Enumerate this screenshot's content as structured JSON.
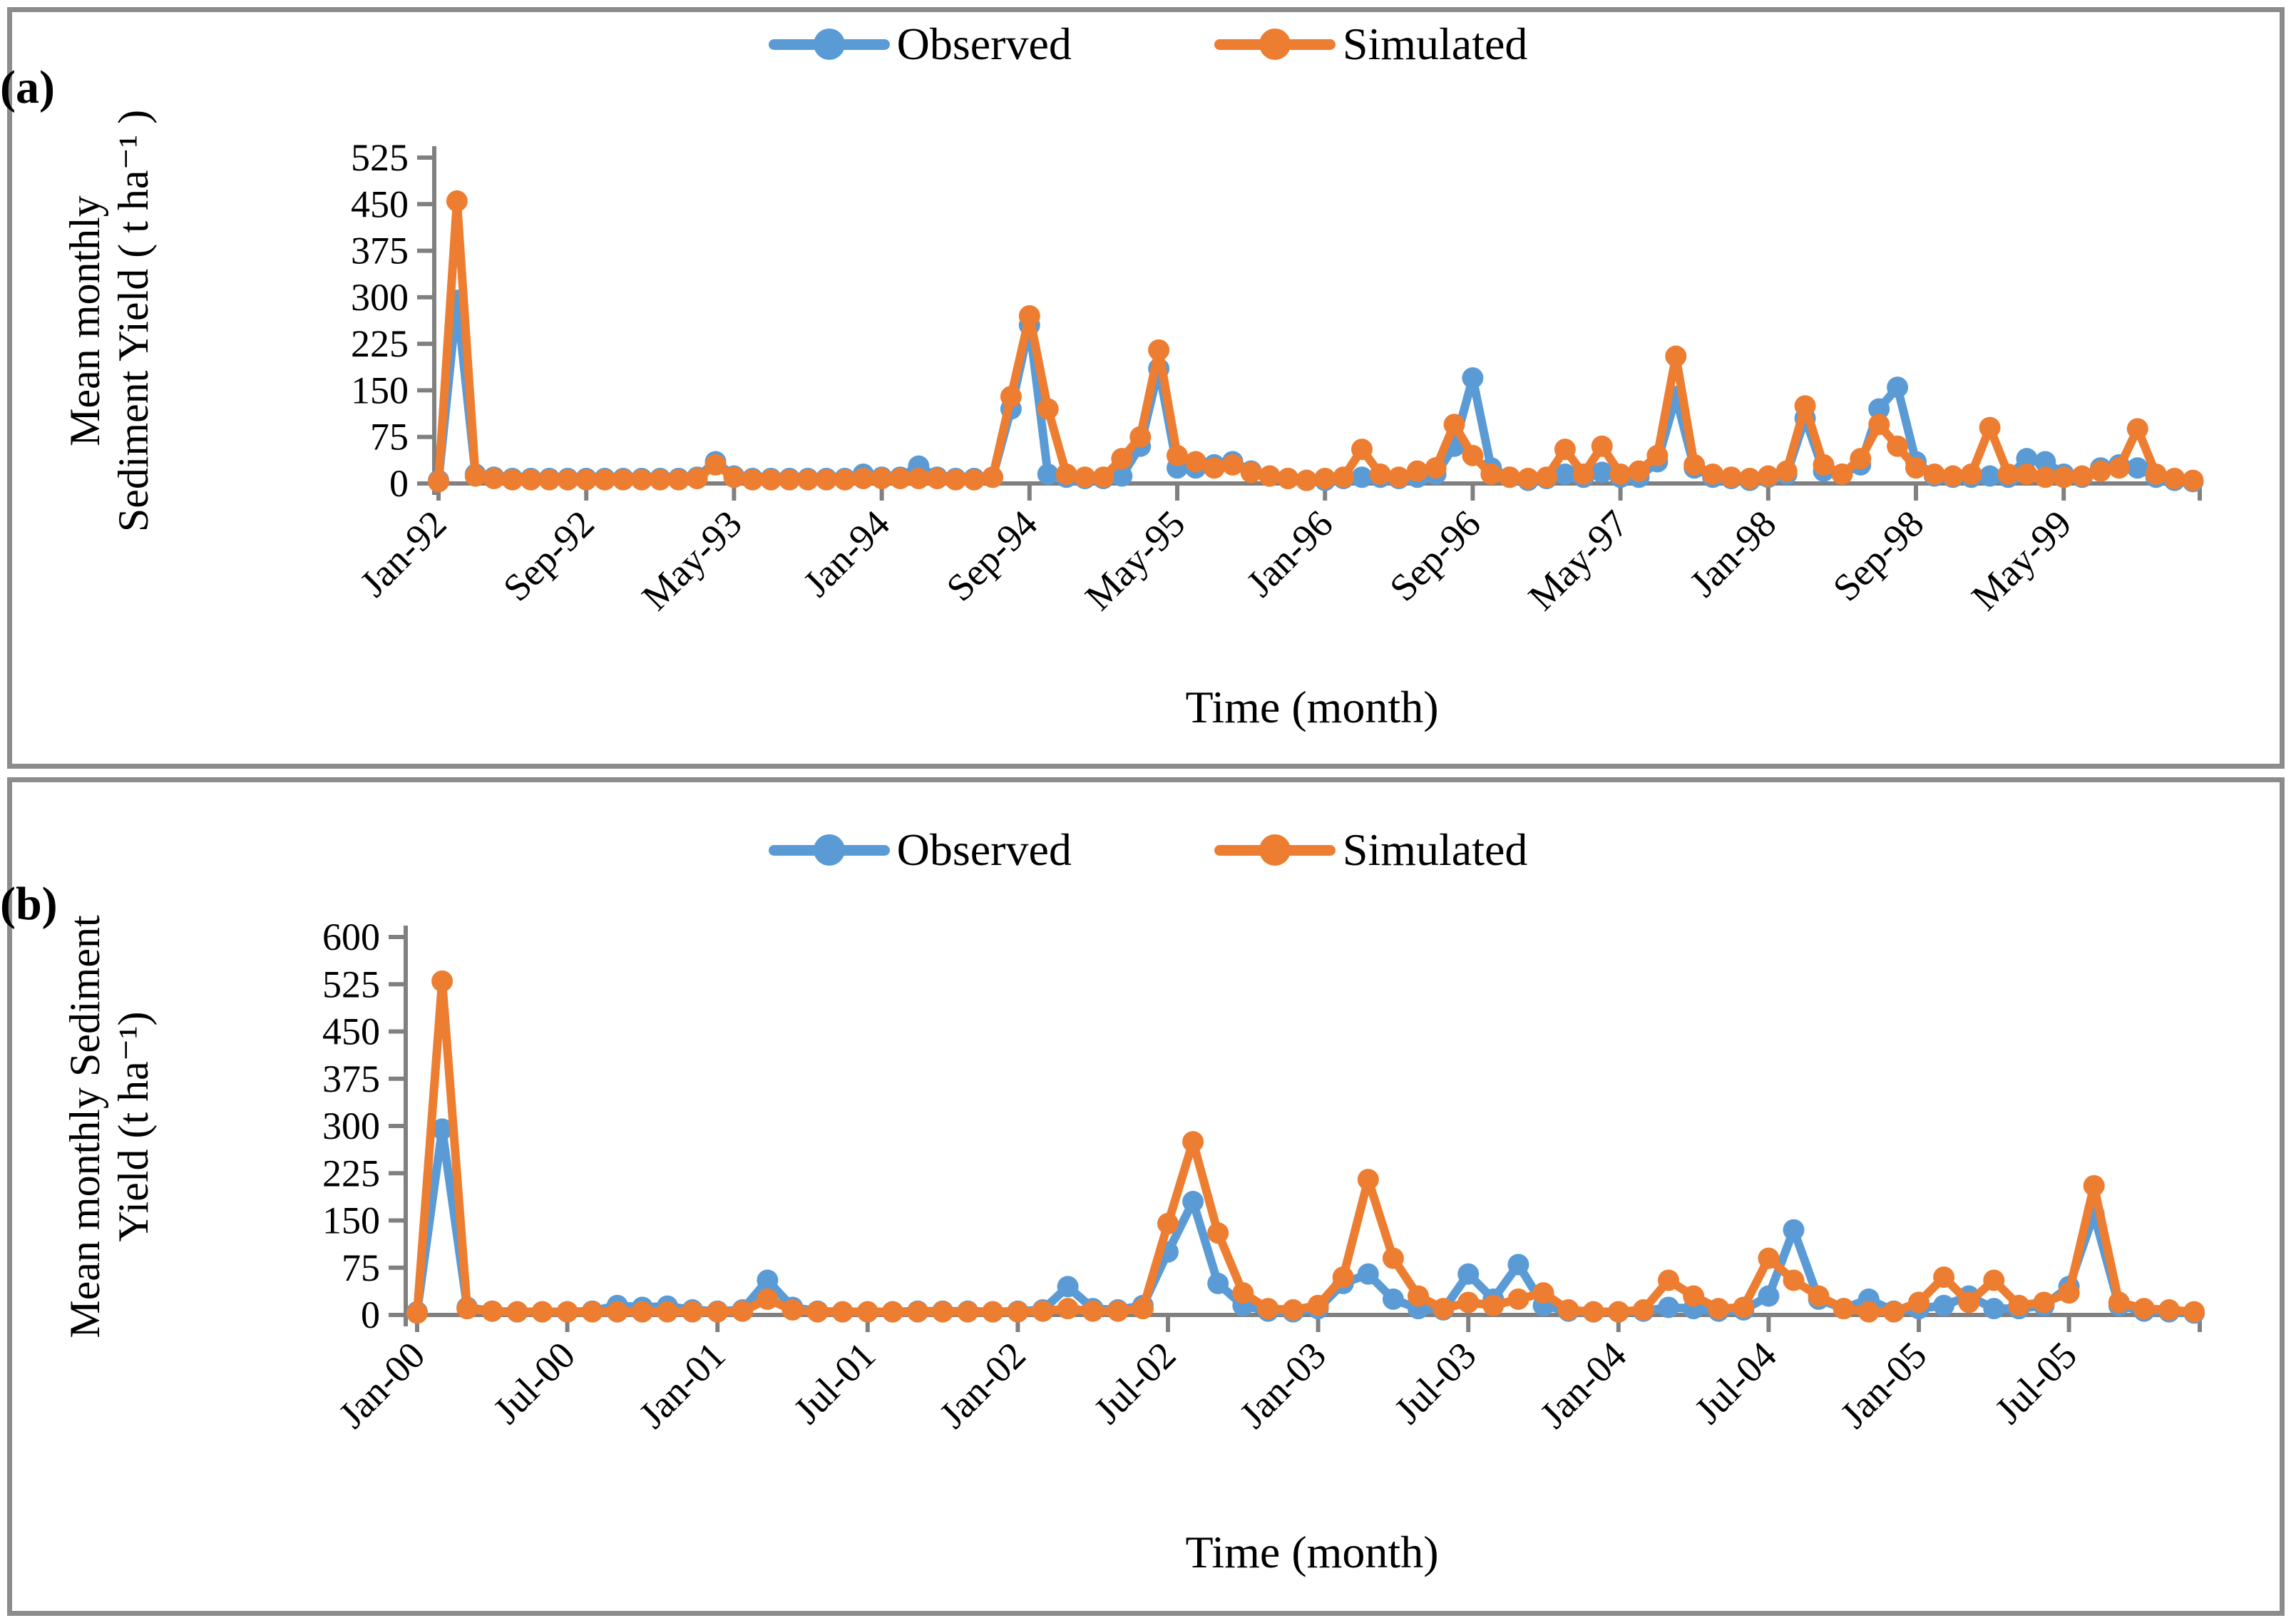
{
  "legend": {
    "observed_label": "Observed",
    "simulated_label": "Simulated"
  },
  "colors": {
    "observed": "#5B9BD5",
    "simulated": "#ED7D31",
    "axis": "#808080",
    "panel_border": "#8C8C8C"
  },
  "panels": [
    {
      "tag": "(a)",
      "y_axis_title_lines": [
        "Mean monthly",
        "Sediment Yield ( t ha⁻¹ )"
      ],
      "x_axis_title": "Time (month)"
    },
    {
      "tag": "(b)",
      "y_axis_title_lines": [
        "Mean monthly Sediment",
        "Yield (t ha⁻¹)"
      ],
      "x_axis_title": "Time (month)"
    }
  ],
  "chart_data": [
    {
      "type": "line",
      "panel": "(a)",
      "xlabel": "Time (month)",
      "ylabel": "Mean monthly Sediment Yield ( t ha-1 )",
      "ylim": [
        0,
        525
      ],
      "ytick_step": 75,
      "y_tick_labels": [
        "0",
        "75",
        "150",
        "225",
        "300",
        "375",
        "450",
        "525"
      ],
      "x_unit": "monthly, Jan-1992 to Dec-1999",
      "x_tick_every": 8,
      "x_tick_labels": [
        "Jan-92",
        "Sep-92",
        "May-93",
        "Jan-94",
        "Sep-94",
        "May-95",
        "Jan-96",
        "Sep-96",
        "May-97",
        "Jan-98",
        "Sep-98",
        "May-99"
      ],
      "legend_position": "top-center",
      "grid": false,
      "series": [
        {
          "name": "Observed",
          "color": "#5B9BD5",
          "values": [
            5,
            295,
            15,
            10,
            8,
            8,
            8,
            8,
            8,
            8,
            8,
            8,
            8,
            8,
            10,
            35,
            12,
            8,
            8,
            8,
            8,
            8,
            8,
            15,
            10,
            10,
            28,
            10,
            8,
            8,
            10,
            120,
            255,
            15,
            10,
            8,
            8,
            12,
            60,
            185,
            25,
            25,
            30,
            35,
            20,
            12,
            8,
            5,
            5,
            8,
            10,
            10,
            8,
            10,
            15,
            60,
            170,
            25,
            10,
            5,
            8,
            15,
            10,
            18,
            10,
            10,
            35,
            140,
            25,
            10,
            8,
            5,
            10,
            15,
            105,
            20,
            15,
            30,
            120,
            155,
            35,
            12,
            10,
            10,
            12,
            10,
            40,
            35,
            15,
            10,
            25,
            30,
            25,
            10,
            5,
            3
          ]
        },
        {
          "name": "Simulated",
          "color": "#ED7D31",
          "values": [
            3,
            455,
            12,
            8,
            6,
            6,
            6,
            6,
            6,
            6,
            6,
            6,
            6,
            6,
            8,
            30,
            10,
            6,
            6,
            6,
            6,
            6,
            6,
            8,
            8,
            8,
            8,
            8,
            6,
            6,
            10,
            140,
            270,
            120,
            15,
            10,
            10,
            40,
            75,
            215,
            45,
            35,
            25,
            30,
            18,
            12,
            8,
            5,
            8,
            10,
            55,
            15,
            10,
            20,
            25,
            95,
            45,
            15,
            10,
            8,
            10,
            55,
            15,
            60,
            15,
            20,
            45,
            205,
            30,
            15,
            10,
            8,
            12,
            20,
            125,
            30,
            15,
            40,
            95,
            60,
            25,
            15,
            12,
            15,
            90,
            15,
            15,
            10,
            10,
            12,
            20,
            25,
            88,
            15,
            8,
            5
          ]
        }
      ]
    },
    {
      "type": "line",
      "panel": "(b)",
      "xlabel": "Time (month)",
      "ylabel": "Mean monthly Sediment Yield (t ha-1)",
      "ylim": [
        0,
        600
      ],
      "ytick_step": 75,
      "y_tick_labels": [
        "0",
        "75",
        "150",
        "225",
        "300",
        "375",
        "450",
        "525",
        "600"
      ],
      "x_unit": "monthly, Jan-2000 to Dec-2005",
      "x_tick_every": 6,
      "x_tick_labels": [
        "Jan-00",
        "Jul-00",
        "Jan-01",
        "Jul-01",
        "Jan-02",
        "Jul-02",
        "Jan-03",
        "Jul-03",
        "Jan-04",
        "Jul-04",
        "Jan-05",
        "Jul-05"
      ],
      "legend_position": "top-center",
      "grid": false,
      "series": [
        {
          "name": "Observed",
          "color": "#5B9BD5",
          "values": [
            5,
            295,
            12,
            6,
            5,
            5,
            5,
            6,
            15,
            12,
            14,
            8,
            6,
            8,
            55,
            12,
            6,
            5,
            5,
            5,
            6,
            6,
            6,
            5,
            6,
            8,
            45,
            10,
            8,
            15,
            100,
            180,
            50,
            15,
            6,
            5,
            10,
            50,
            65,
            25,
            10,
            8,
            65,
            25,
            80,
            15,
            6,
            5,
            5,
            6,
            12,
            10,
            6,
            8,
            30,
            135,
            25,
            10,
            25,
            6,
            10,
            15,
            30,
            10,
            10,
            15,
            45,
            160,
            15,
            6,
            5,
            3
          ]
        },
        {
          "name": "Simulated",
          "color": "#ED7D31",
          "values": [
            3,
            530,
            10,
            6,
            5,
            5,
            5,
            5,
            5,
            5,
            5,
            5,
            5,
            6,
            25,
            8,
            5,
            5,
            5,
            5,
            5,
            5,
            5,
            5,
            5,
            6,
            10,
            6,
            6,
            10,
            145,
            275,
            130,
            35,
            10,
            8,
            15,
            60,
            215,
            90,
            30,
            10,
            20,
            15,
            25,
            35,
            8,
            5,
            5,
            8,
            55,
            30,
            10,
            12,
            90,
            55,
            30,
            10,
            5,
            5,
            20,
            60,
            20,
            55,
            15,
            20,
            35,
            205,
            20,
            10,
            8,
            5
          ]
        }
      ]
    }
  ]
}
